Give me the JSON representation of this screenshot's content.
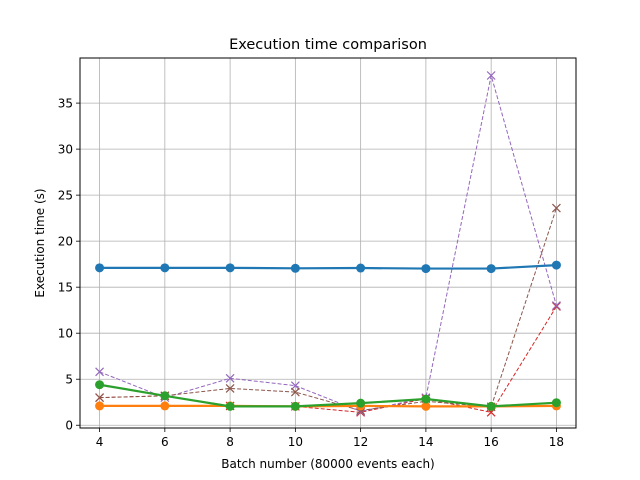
{
  "chart_data": {
    "type": "line",
    "title": "Execution time comparison",
    "xlabel": "Batch number (80000 events each)",
    "ylabel": "Execution time (s)",
    "x": [
      4,
      6,
      8,
      10,
      12,
      14,
      16,
      18
    ],
    "xlim": [
      3.4,
      18.6
    ],
    "ylim": [
      -0.3,
      39.9
    ],
    "xticks": [
      4,
      6,
      8,
      10,
      12,
      14,
      16,
      18
    ],
    "yticks": [
      0,
      5,
      10,
      15,
      20,
      25,
      30,
      35
    ],
    "grid": true,
    "series": [
      {
        "values": [
          17.1,
          17.1,
          17.1,
          17.05,
          17.08,
          17.02,
          17.02,
          17.4
        ],
        "color": "#1f77b4",
        "style": "solid",
        "marker": "circle"
      },
      {
        "values": [
          2.1,
          2.1,
          2.1,
          2.05,
          2.1,
          2.05,
          2.05,
          2.1
        ],
        "color": "#ff7f0e",
        "style": "solid",
        "marker": "circle"
      },
      {
        "values": [
          4.4,
          3.2,
          2.05,
          2.05,
          2.4,
          2.85,
          2.05,
          2.45
        ],
        "color": "#2ca02c",
        "style": "solid",
        "marker": "circle"
      },
      {
        "values": [
          3.0,
          3.2,
          2.1,
          2.05,
          1.4,
          2.9,
          1.4,
          12.9
        ],
        "color": "#d62728",
        "style": "dashed",
        "marker": "x"
      },
      {
        "values": [
          5.8,
          3.0,
          5.1,
          4.3,
          1.5,
          3.0,
          38.0,
          13.0
        ],
        "color": "#9467bd",
        "style": "dashed",
        "marker": "x"
      },
      {
        "values": [
          3.0,
          3.2,
          4.0,
          3.6,
          1.6,
          2.6,
          2.0,
          23.6
        ],
        "color": "#8c564b",
        "style": "dashed",
        "marker": "x"
      }
    ]
  }
}
